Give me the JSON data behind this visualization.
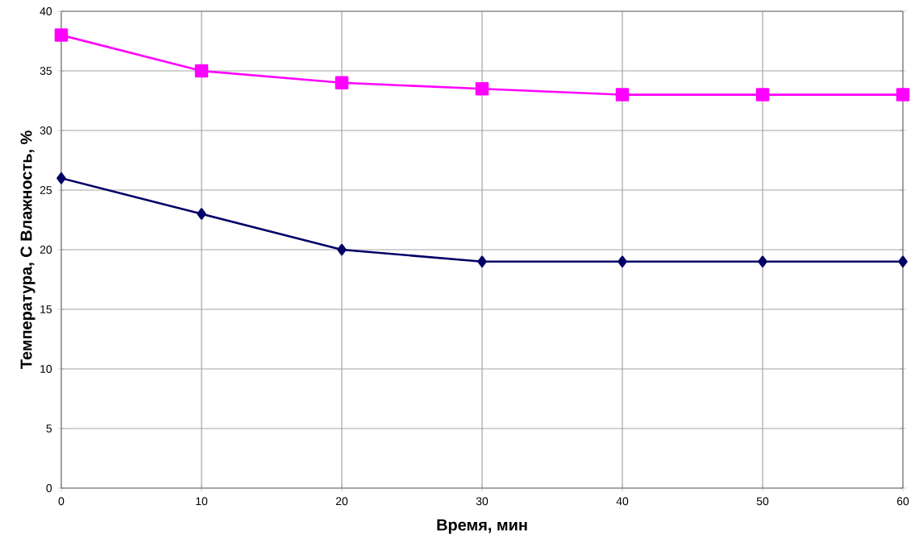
{
  "chart_data": {
    "type": "line",
    "xlabel": "Время, мин",
    "ylabel": "Температура, С    Влажность, %",
    "x": [
      0,
      10,
      20,
      30,
      40,
      50,
      60
    ],
    "series": [
      {
        "color": "#ff00ff",
        "marker": "square",
        "values": [
          38,
          35,
          34,
          33.5,
          33,
          33,
          33
        ]
      },
      {
        "color": "#000066",
        "marker": "diamond",
        "values": [
          26,
          23,
          20,
          19,
          19,
          19,
          19
        ]
      }
    ],
    "xlim": [
      0,
      60
    ],
    "xticks": [
      0,
      10,
      20,
      30,
      40,
      50,
      60
    ],
    "ylim": [
      0,
      40
    ],
    "yticks": [
      0,
      5,
      10,
      15,
      20,
      25,
      30,
      35,
      40
    ],
    "grid": true
  }
}
